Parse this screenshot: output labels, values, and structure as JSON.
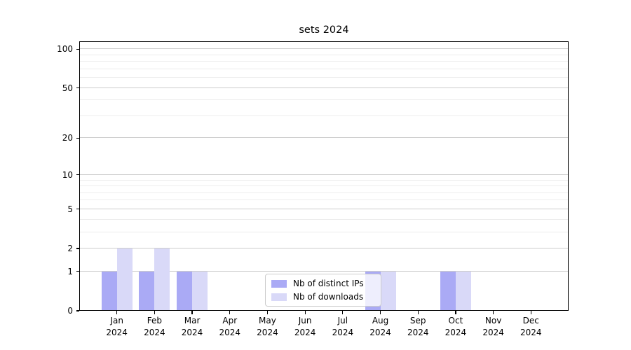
{
  "chart_data": {
    "type": "bar",
    "title": "sets 2024",
    "categories": [
      "Jan 2024",
      "Feb 2024",
      "Mar 2024",
      "Apr 2024",
      "May 2024",
      "Jun 2024",
      "Jul 2024",
      "Aug 2024",
      "Sep 2024",
      "Oct 2024",
      "Nov 2024",
      "Dec 2024"
    ],
    "x_tick_line1": [
      "Jan",
      "Feb",
      "Mar",
      "Apr",
      "May",
      "Jun",
      "Jul",
      "Aug",
      "Sep",
      "Oct",
      "Nov",
      "Dec"
    ],
    "x_tick_line2": "2024",
    "series": [
      {
        "name": "Nb of distinct IPs",
        "color": "#aaaaf5",
        "values": [
          1,
          1,
          1,
          0,
          0,
          0,
          0,
          1,
          0,
          1,
          0,
          0
        ]
      },
      {
        "name": "Nb of downloads",
        "color": "#d9d9f8",
        "values": [
          2,
          2,
          1,
          0,
          0,
          0,
          0,
          1,
          0,
          1,
          0,
          0
        ]
      }
    ],
    "yscale": "log1p",
    "ylim": [
      0,
      115
    ],
    "y_major_ticks": [
      0,
      1,
      2,
      5,
      10,
      20,
      50,
      100
    ],
    "y_minor_gridlines": [
      3,
      4,
      6,
      7,
      8,
      9,
      30,
      40,
      60,
      70,
      80,
      90
    ],
    "grid": true,
    "legend": {
      "position": "lower-center-inside",
      "labels": [
        "Nb of distinct IPs",
        "Nb of downloads"
      ]
    },
    "colors": {
      "major_grid": "#cccccc",
      "minor_grid": "#ececec",
      "axis": "#000000",
      "background": "#ffffff"
    }
  }
}
